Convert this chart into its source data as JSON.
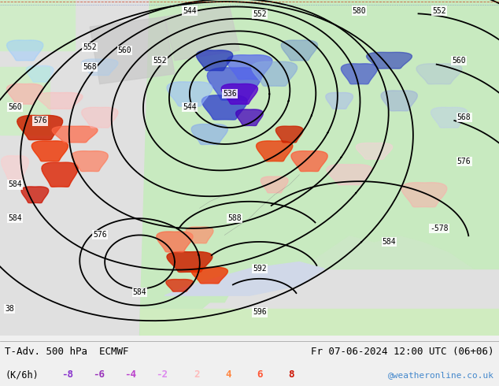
{
  "title_left": "T-Adv. 500 hPa  ECMWF",
  "title_right": "Fr 07-06-2024 12:00 UTC (06+06)",
  "subtitle_left": "(K/6h)",
  "watermark": "@weatheronline.co.uk",
  "watermark_color": "#4488cc",
  "fig_width": 6.34,
  "fig_height": 4.9,
  "dpi": 100,
  "map_bg": "#e8e8e8",
  "land_color": "#c8eac0",
  "ocean_color": "#dcdcdc",
  "panel_bg": "#f0f0f0",
  "neg_legend_colors": [
    "#8833cc",
    "#9944bb",
    "#bb44cc",
    "#dd88ee"
  ],
  "pos_legend_colors": [
    "#ffbbbb",
    "#ff8844",
    "#ff4422",
    "#cc1100"
  ],
  "neg_legend_vals": [
    "-8",
    "-6",
    "-4",
    "-2"
  ],
  "pos_legend_vals": [
    "2",
    "4",
    "6",
    "8"
  ]
}
